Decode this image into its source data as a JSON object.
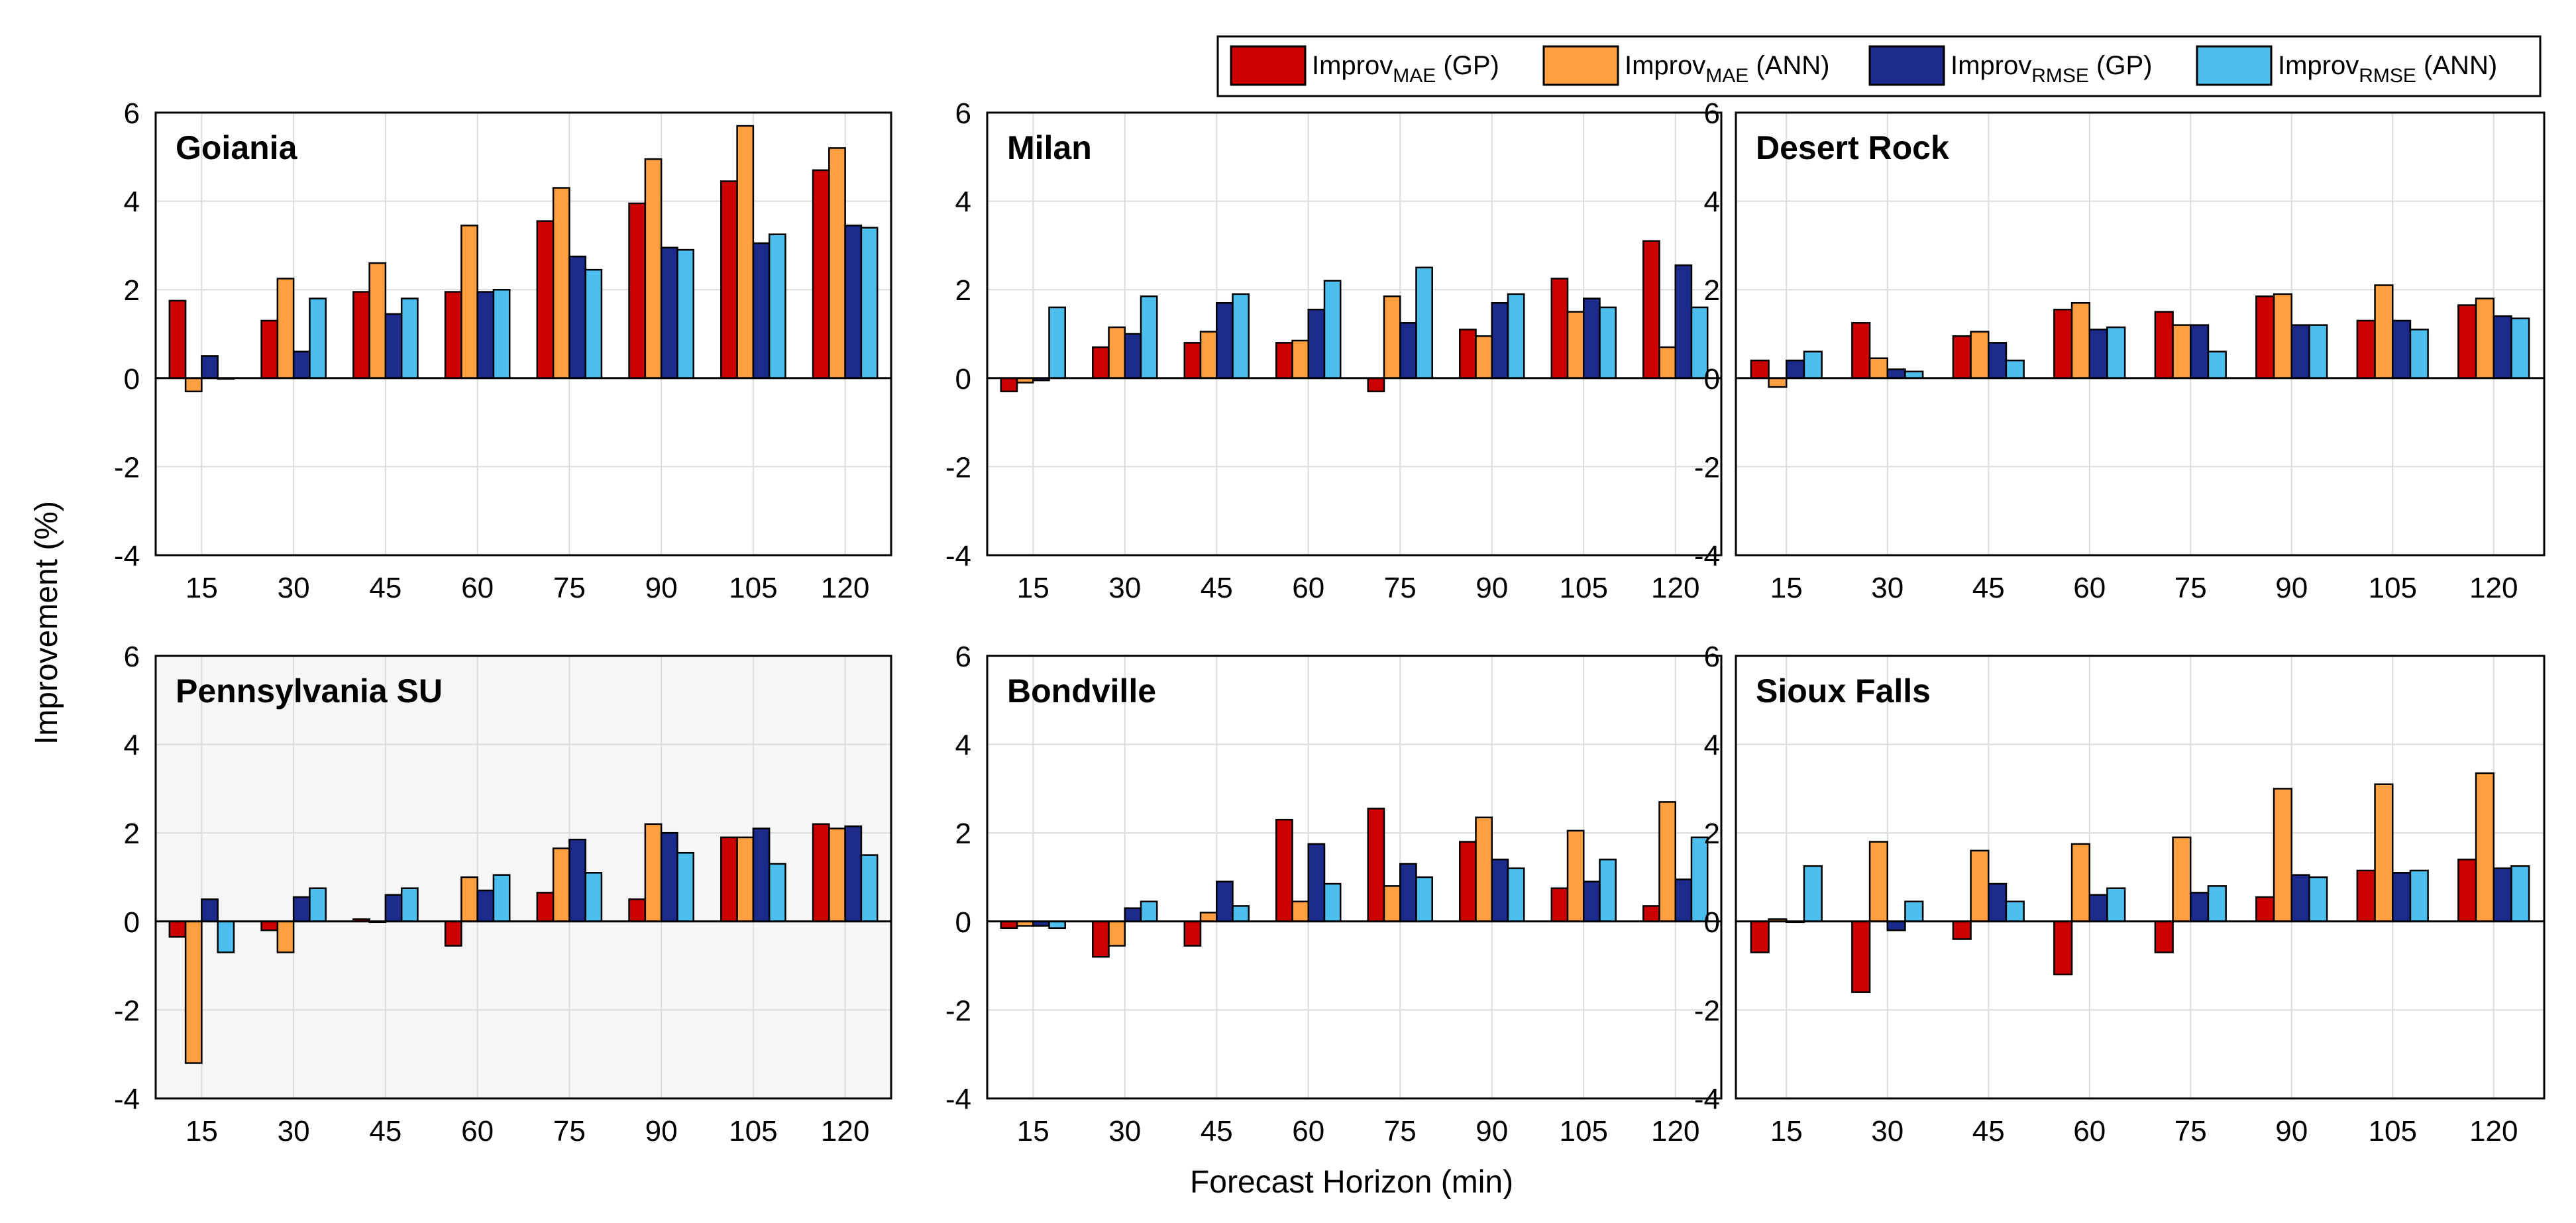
{
  "figure": {
    "ylabel": "Improvement (%)",
    "xlabel": "Forecast Horizon (min)"
  },
  "legend": [
    {
      "base": "Improv",
      "sub": "MAE",
      "suffix": " (GP)",
      "color": "#cc0000"
    },
    {
      "base": "Improv",
      "sub": "MAE",
      "suffix": " (ANN)",
      "color": "#ffa040"
    },
    {
      "base": "Improv",
      "sub": "RMSE",
      "suffix": " (GP)",
      "color": "#1c2a8c"
    },
    {
      "base": "Improv",
      "sub": "RMSE",
      "suffix": " (ANN)",
      "color": "#4dbfee"
    }
  ],
  "chart_data": [
    {
      "type": "bar",
      "title": "Goiania",
      "highlighted": false,
      "categories": [
        "15",
        "30",
        "45",
        "60",
        "75",
        "90",
        "105",
        "120"
      ],
      "ylim": [
        -4,
        6
      ],
      "yticks": [
        "-4",
        "-2",
        "0",
        "2",
        "4",
        "6"
      ],
      "grid": true,
      "series": [
        {
          "name": "ImprovMAE (GP)",
          "values": [
            1.75,
            1.3,
            1.95,
            1.95,
            3.55,
            3.95,
            4.45,
            4.7
          ]
        },
        {
          "name": "ImprovMAE (ANN)",
          "values": [
            -0.3,
            2.25,
            2.6,
            3.45,
            4.3,
            4.95,
            5.7,
            5.2
          ]
        },
        {
          "name": "ImprovRMSE (GP)",
          "values": [
            0.5,
            0.6,
            1.45,
            1.95,
            2.75,
            2.95,
            3.05,
            3.45
          ]
        },
        {
          "name": "ImprovRMSE (ANN)",
          "values": [
            0.0,
            1.8,
            1.8,
            2.0,
            2.45,
            2.9,
            3.25,
            3.4
          ]
        }
      ]
    },
    {
      "type": "bar",
      "title": "Milan",
      "highlighted": false,
      "categories": [
        "15",
        "30",
        "45",
        "60",
        "75",
        "90",
        "105",
        "120"
      ],
      "ylim": [
        -4,
        6
      ],
      "yticks": [
        "-4",
        "-2",
        "0",
        "2",
        "4",
        "6"
      ],
      "grid": true,
      "series": [
        {
          "name": "ImprovMAE (GP)",
          "values": [
            -0.3,
            0.7,
            0.8,
            0.8,
            -0.3,
            1.1,
            2.25,
            3.1
          ]
        },
        {
          "name": "ImprovMAE (ANN)",
          "values": [
            -0.1,
            1.15,
            1.05,
            0.85,
            1.85,
            0.95,
            1.5,
            0.7
          ]
        },
        {
          "name": "ImprovRMSE (GP)",
          "values": [
            -0.05,
            1.0,
            1.7,
            1.55,
            1.25,
            1.7,
            1.8,
            2.55
          ]
        },
        {
          "name": "ImprovRMSE (ANN)",
          "values": [
            1.6,
            1.85,
            1.9,
            2.2,
            2.5,
            1.9,
            1.6,
            1.6
          ]
        }
      ]
    },
    {
      "type": "bar",
      "title": "Desert Rock",
      "highlighted": false,
      "categories": [
        "15",
        "30",
        "45",
        "60",
        "75",
        "90",
        "105",
        "120"
      ],
      "ylim": [
        -4,
        6
      ],
      "yticks": [
        "-4",
        "-2",
        "0",
        "2",
        "4",
        "6"
      ],
      "grid": true,
      "series": [
        {
          "name": "ImprovMAE (GP)",
          "values": [
            0.4,
            1.25,
            0.95,
            1.55,
            1.5,
            1.85,
            1.3,
            1.65
          ]
        },
        {
          "name": "ImprovMAE (ANN)",
          "values": [
            -0.2,
            0.45,
            1.05,
            1.7,
            1.2,
            1.9,
            2.1,
            1.8
          ]
        },
        {
          "name": "ImprovRMSE (GP)",
          "values": [
            0.4,
            0.2,
            0.8,
            1.1,
            1.2,
            1.2,
            1.3,
            1.4
          ]
        },
        {
          "name": "ImprovRMSE (ANN)",
          "values": [
            0.6,
            0.15,
            0.4,
            1.15,
            0.6,
            1.2,
            1.1,
            1.35
          ]
        }
      ]
    },
    {
      "type": "bar",
      "title": "Pennsylvania SU",
      "highlighted": true,
      "categories": [
        "15",
        "30",
        "45",
        "60",
        "75",
        "90",
        "105",
        "120"
      ],
      "ylim": [
        -4,
        6
      ],
      "yticks": [
        "-4",
        "-2",
        "0",
        "2",
        "4",
        "6"
      ],
      "grid": true,
      "series": [
        {
          "name": "ImprovMAE (GP)",
          "values": [
            -0.35,
            -0.2,
            0.05,
            -0.55,
            0.65,
            0.5,
            1.9,
            2.2
          ]
        },
        {
          "name": "ImprovMAE (ANN)",
          "values": [
            -3.2,
            -0.7,
            0.0,
            1.0,
            1.65,
            2.2,
            1.9,
            2.1
          ]
        },
        {
          "name": "ImprovRMSE (GP)",
          "values": [
            0.5,
            0.55,
            0.6,
            0.7,
            1.85,
            2.0,
            2.1,
            2.15
          ]
        },
        {
          "name": "ImprovRMSE (ANN)",
          "values": [
            -0.7,
            0.75,
            0.75,
            1.05,
            1.1,
            1.55,
            1.3,
            1.5
          ]
        }
      ]
    },
    {
      "type": "bar",
      "title": "Bondville",
      "highlighted": false,
      "categories": [
        "15",
        "30",
        "45",
        "60",
        "75",
        "90",
        "105",
        "120"
      ],
      "ylim": [
        -4,
        6
      ],
      "yticks": [
        "-4",
        "-2",
        "0",
        "2",
        "4",
        "6"
      ],
      "grid": true,
      "series": [
        {
          "name": "ImprovMAE (GP)",
          "values": [
            -0.15,
            -0.8,
            -0.55,
            2.3,
            2.55,
            1.8,
            0.75,
            0.35
          ]
        },
        {
          "name": "ImprovMAE (ANN)",
          "values": [
            -0.1,
            -0.55,
            0.2,
            0.45,
            0.8,
            2.35,
            2.05,
            2.7
          ]
        },
        {
          "name": "ImprovRMSE (GP)",
          "values": [
            -0.1,
            0.3,
            0.9,
            1.75,
            1.3,
            1.4,
            0.9,
            0.95
          ]
        },
        {
          "name": "ImprovRMSE (ANN)",
          "values": [
            -0.15,
            0.45,
            0.35,
            0.85,
            1.0,
            1.2,
            1.4,
            1.9
          ]
        }
      ]
    },
    {
      "type": "bar",
      "title": "Sioux Falls",
      "highlighted": false,
      "categories": [
        "15",
        "30",
        "45",
        "60",
        "75",
        "90",
        "105",
        "120"
      ],
      "ylim": [
        -4,
        6
      ],
      "yticks": [
        "-4",
        "-2",
        "0",
        "2",
        "4",
        "6"
      ],
      "grid": true,
      "series": [
        {
          "name": "ImprovMAE (GP)",
          "values": [
            -0.7,
            -1.6,
            -0.4,
            -1.2,
            -0.7,
            0.55,
            1.15,
            1.4
          ]
        },
        {
          "name": "ImprovMAE (ANN)",
          "values": [
            0.05,
            1.8,
            1.6,
            1.75,
            1.9,
            3.0,
            3.1,
            3.35
          ]
        },
        {
          "name": "ImprovRMSE (GP)",
          "values": [
            0.0,
            -0.2,
            0.85,
            0.6,
            0.65,
            1.05,
            1.1,
            1.2
          ]
        },
        {
          "name": "ImprovRMSE (ANN)",
          "values": [
            1.25,
            0.45,
            0.45,
            0.75,
            0.8,
            1.0,
            1.15,
            1.25
          ]
        }
      ]
    }
  ]
}
